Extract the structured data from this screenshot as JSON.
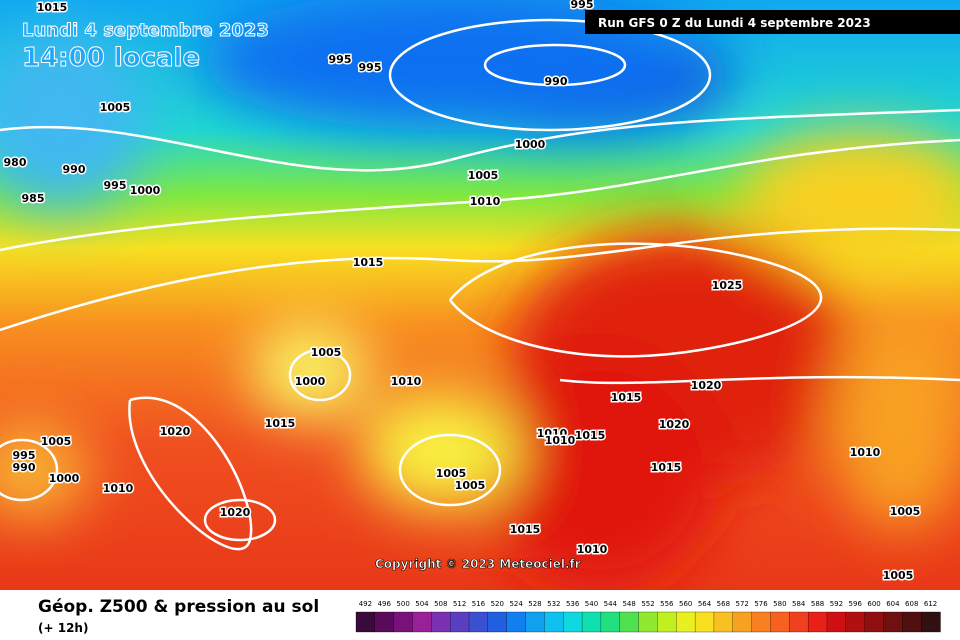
{
  "header": {
    "date": "Lundi 4 septembre 2023",
    "time": "14:00 locale",
    "run": "Run GFS 0 Z du Lundi 4 septembre 2023"
  },
  "isobar_labels": [
    1015,
    995,
    995,
    995,
    990,
    1005,
    980,
    990,
    995,
    1000,
    985,
    1000,
    1005,
    1010,
    1015,
    1025,
    1005,
    1000,
    1010,
    1020,
    1015,
    1020,
    1015,
    1020,
    1010,
    1010,
    1015,
    1010,
    1005,
    995,
    990,
    1000,
    1005,
    1005,
    1010,
    1015,
    1020,
    1015,
    1005,
    1010,
    1005
  ],
  "copyright": "Copyright © 2023 Meteociel.fr",
  "footer": {
    "title": "Géop. Z500 & pression au sol",
    "lead": "(+ 12h)"
  },
  "legend": {
    "labels": [
      492,
      496,
      500,
      504,
      508,
      512,
      516,
      520,
      524,
      528,
      532,
      536,
      540,
      544,
      548,
      552,
      556,
      560,
      564,
      568,
      572,
      576,
      580,
      584,
      588,
      592,
      596,
      600,
      604,
      608,
      612
    ],
    "colors": [
      "#3a0a3a",
      "#5a0a5a",
      "#7a107a",
      "#9a209a",
      "#7a30b0",
      "#5a40c0",
      "#3a50d0",
      "#2060e0",
      "#1080f0",
      "#10a0f0",
      "#10c0f0",
      "#10d8e0",
      "#10e0b0",
      "#20e080",
      "#50e050",
      "#90e830",
      "#c0f020",
      "#e8f020",
      "#f8e020",
      "#f8c020",
      "#f8a020",
      "#f88020",
      "#f86020",
      "#f04020",
      "#e82018",
      "#d01010",
      "#b01010",
      "#901010",
      "#701010",
      "#501010",
      "#301010"
    ]
  }
}
